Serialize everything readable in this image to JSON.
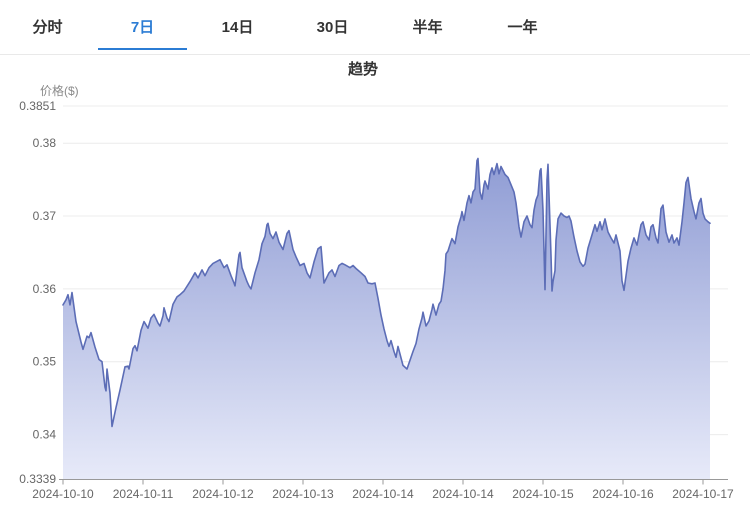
{
  "tabs": {
    "items": [
      {
        "label": "分时",
        "active": false
      },
      {
        "label": "7日",
        "active": true
      },
      {
        "label": "14日",
        "active": false
      },
      {
        "label": "30日",
        "active": false
      },
      {
        "label": "半年",
        "active": false
      },
      {
        "label": "一年",
        "active": false
      }
    ]
  },
  "header": {
    "title": "趋势"
  },
  "chart": {
    "y_axis_name": "价格($)",
    "y_ticks": [
      "0.3851",
      "0.38",
      "0.37",
      "0.36",
      "0.35",
      "0.34",
      "0.3339"
    ],
    "x_ticks": [
      "2024-10-10",
      "2024-10-11",
      "2024-10-12",
      "2024-10-13",
      "2024-10-14",
      "2024-10-14",
      "2024-10-15",
      "2024-10-16",
      "2024-10-17"
    ],
    "colors": {
      "line": "#5c6db6",
      "fill_top": "#8f9cd4",
      "fill_bottom": "#e7eaf9",
      "grid": "#ececec",
      "axis": "#999999",
      "tick_text": "#666666",
      "active_tab": "#2b7cd4",
      "tab_text": "#333333",
      "title_text": "#333333",
      "axis_name_text": "#8a8a8a"
    }
  },
  "chart_data": {
    "type": "area",
    "title": "趋势",
    "ylabel": "价格($)",
    "xlabel": "",
    "grid": true,
    "legend": null,
    "x_axis_labels": [
      "2024-10-10",
      "2024-10-11",
      "2024-10-12",
      "2024-10-13",
      "2024-10-14",
      "2024-10-14",
      "2024-10-15",
      "2024-10-16",
      "2024-10-17"
    ],
    "y_axis_ticks": [
      0.3851,
      0.38,
      0.37,
      0.36,
      0.35,
      0.34,
      0.3339
    ],
    "y_range": [
      0.3339,
      0.3851
    ],
    "x_unit": "tick index (0 = 2024-10-10, one unit per x tick)",
    "points": [
      [
        0,
        0.3578
      ],
      [
        0.038,
        0.3585
      ],
      [
        0.063,
        0.3592
      ],
      [
        0.088,
        0.3578
      ],
      [
        0.113,
        0.3595
      ],
      [
        0.163,
        0.3555
      ],
      [
        0.225,
        0.3527
      ],
      [
        0.25,
        0.3517
      ],
      [
        0.3,
        0.3535
      ],
      [
        0.325,
        0.3533
      ],
      [
        0.35,
        0.354
      ],
      [
        0.4,
        0.352
      ],
      [
        0.45,
        0.3503
      ],
      [
        0.488,
        0.35
      ],
      [
        0.525,
        0.3465
      ],
      [
        0.538,
        0.346
      ],
      [
        0.55,
        0.349
      ],
      [
        0.588,
        0.3457
      ],
      [
        0.613,
        0.3411
      ],
      [
        0.663,
        0.3437
      ],
      [
        0.713,
        0.3461
      ],
      [
        0.775,
        0.3493
      ],
      [
        0.813,
        0.3494
      ],
      [
        0.825,
        0.349
      ],
      [
        0.875,
        0.3518
      ],
      [
        0.9,
        0.3522
      ],
      [
        0.925,
        0.3515
      ],
      [
        0.975,
        0.3543
      ],
      [
        1.013,
        0.3555
      ],
      [
        1.063,
        0.3546
      ],
      [
        1.1,
        0.356
      ],
      [
        1.138,
        0.3565
      ],
      [
        1.188,
        0.3553
      ],
      [
        1.213,
        0.3549
      ],
      [
        1.25,
        0.3563
      ],
      [
        1.263,
        0.3574
      ],
      [
        1.3,
        0.356
      ],
      [
        1.325,
        0.3555
      ],
      [
        1.375,
        0.3579
      ],
      [
        1.425,
        0.3589
      ],
      [
        1.463,
        0.3592
      ],
      [
        1.513,
        0.3597
      ],
      [
        1.588,
        0.361
      ],
      [
        1.65,
        0.3622
      ],
      [
        1.688,
        0.3615
      ],
      [
        1.738,
        0.3626
      ],
      [
        1.775,
        0.3618
      ],
      [
        1.825,
        0.3629
      ],
      [
        1.875,
        0.3635
      ],
      [
        1.963,
        0.364
      ],
      [
        2.013,
        0.3629
      ],
      [
        2.05,
        0.3633
      ],
      [
        2.1,
        0.3618
      ],
      [
        2.138,
        0.3608
      ],
      [
        2.15,
        0.3604
      ],
      [
        2.2,
        0.3647
      ],
      [
        2.213,
        0.365
      ],
      [
        2.238,
        0.3629
      ],
      [
        2.3,
        0.361
      ],
      [
        2.325,
        0.3604
      ],
      [
        2.35,
        0.36
      ],
      [
        2.4,
        0.3622
      ],
      [
        2.45,
        0.364
      ],
      [
        2.488,
        0.3662
      ],
      [
        2.525,
        0.3672
      ],
      [
        2.55,
        0.3688
      ],
      [
        2.563,
        0.369
      ],
      [
        2.588,
        0.3676
      ],
      [
        2.625,
        0.3669
      ],
      [
        2.663,
        0.3678
      ],
      [
        2.7,
        0.3664
      ],
      [
        2.75,
        0.3654
      ],
      [
        2.8,
        0.3676
      ],
      [
        2.825,
        0.368
      ],
      [
        2.875,
        0.3654
      ],
      [
        2.913,
        0.3644
      ],
      [
        2.963,
        0.3632
      ],
      [
        3.013,
        0.3635
      ],
      [
        3.05,
        0.3622
      ],
      [
        3.088,
        0.3615
      ],
      [
        3.138,
        0.3637
      ],
      [
        3.188,
        0.3655
      ],
      [
        3.225,
        0.3658
      ],
      [
        3.263,
        0.3608
      ],
      [
        3.325,
        0.3622
      ],
      [
        3.363,
        0.3626
      ],
      [
        3.4,
        0.3617
      ],
      [
        3.45,
        0.3632
      ],
      [
        3.488,
        0.3635
      ],
      [
        3.525,
        0.3633
      ],
      [
        3.588,
        0.3629
      ],
      [
        3.625,
        0.3632
      ],
      [
        3.663,
        0.3628
      ],
      [
        3.725,
        0.3622
      ],
      [
        3.775,
        0.3617
      ],
      [
        3.813,
        0.3608
      ],
      [
        3.863,
        0.3607
      ],
      [
        3.9,
        0.3608
      ],
      [
        3.938,
        0.3587
      ],
      [
        3.975,
        0.3564
      ],
      [
        4.013,
        0.3545
      ],
      [
        4.05,
        0.3529
      ],
      [
        4.075,
        0.3521
      ],
      [
        4.1,
        0.3529
      ],
      [
        4.138,
        0.3514
      ],
      [
        4.163,
        0.3506
      ],
      [
        4.188,
        0.3521
      ],
      [
        4.25,
        0.3495
      ],
      [
        4.3,
        0.349
      ],
      [
        4.375,
        0.3514
      ],
      [
        4.413,
        0.3525
      ],
      [
        4.45,
        0.3545
      ],
      [
        4.488,
        0.356
      ],
      [
        4.5,
        0.3568
      ],
      [
        4.538,
        0.3549
      ],
      [
        4.575,
        0.3556
      ],
      [
        4.613,
        0.3572
      ],
      [
        4.625,
        0.3579
      ],
      [
        4.663,
        0.3564
      ],
      [
        4.7,
        0.3579
      ],
      [
        4.725,
        0.3583
      ],
      [
        4.75,
        0.36
      ],
      [
        4.775,
        0.3625
      ],
      [
        4.788,
        0.3648
      ],
      [
        4.813,
        0.3652
      ],
      [
        4.85,
        0.3665
      ],
      [
        4.863,
        0.3669
      ],
      [
        4.9,
        0.3662
      ],
      [
        4.938,
        0.3685
      ],
      [
        4.975,
        0.3699
      ],
      [
        4.988,
        0.3706
      ],
      [
        5.013,
        0.3694
      ],
      [
        5.05,
        0.3718
      ],
      [
        5.075,
        0.3728
      ],
      [
        5.1,
        0.3718
      ],
      [
        5.125,
        0.3733
      ],
      [
        5.15,
        0.3737
      ],
      [
        5.175,
        0.3776
      ],
      [
        5.188,
        0.3779
      ],
      [
        5.213,
        0.3733
      ],
      [
        5.238,
        0.3723
      ],
      [
        5.263,
        0.3743
      ],
      [
        5.275,
        0.3748
      ],
      [
        5.313,
        0.3737
      ],
      [
        5.338,
        0.3757
      ],
      [
        5.363,
        0.3766
      ],
      [
        5.388,
        0.3757
      ],
      [
        5.425,
        0.3772
      ],
      [
        5.45,
        0.3758
      ],
      [
        5.475,
        0.3768
      ],
      [
        5.525,
        0.3757
      ],
      [
        5.563,
        0.3753
      ],
      [
        5.6,
        0.3743
      ],
      [
        5.638,
        0.3733
      ],
      [
        5.663,
        0.3718
      ],
      [
        5.7,
        0.3685
      ],
      [
        5.725,
        0.3671
      ],
      [
        5.763,
        0.3692
      ],
      [
        5.8,
        0.37
      ],
      [
        5.838,
        0.3688
      ],
      [
        5.863,
        0.3684
      ],
      [
        5.888,
        0.3708
      ],
      [
        5.913,
        0.3722
      ],
      [
        5.938,
        0.3729
      ],
      [
        5.963,
        0.3762
      ],
      [
        5.975,
        0.3765
      ],
      [
        6,
        0.3708
      ],
      [
        6.025,
        0.3599
      ],
      [
        6.05,
        0.375
      ],
      [
        6.063,
        0.3771
      ],
      [
        6.088,
        0.3688
      ],
      [
        6.1,
        0.3646
      ],
      [
        6.113,
        0.3597
      ],
      [
        6.125,
        0.361
      ],
      [
        6.15,
        0.3625
      ],
      [
        6.163,
        0.3667
      ],
      [
        6.188,
        0.3696
      ],
      [
        6.225,
        0.3704
      ],
      [
        6.263,
        0.37
      ],
      [
        6.3,
        0.3698
      ],
      [
        6.325,
        0.37
      ],
      [
        6.35,
        0.3693
      ],
      [
        6.388,
        0.3671
      ],
      [
        6.425,
        0.3652
      ],
      [
        6.463,
        0.3637
      ],
      [
        6.5,
        0.3631
      ],
      [
        6.525,
        0.3634
      ],
      [
        6.563,
        0.3656
      ],
      [
        6.613,
        0.3674
      ],
      [
        6.65,
        0.3688
      ],
      [
        6.675,
        0.3679
      ],
      [
        6.713,
        0.3692
      ],
      [
        6.738,
        0.3681
      ],
      [
        6.775,
        0.3696
      ],
      [
        6.813,
        0.3678
      ],
      [
        6.85,
        0.367
      ],
      [
        6.888,
        0.3663
      ],
      [
        6.913,
        0.3674
      ],
      [
        6.963,
        0.3652
      ],
      [
        6.988,
        0.3611
      ],
      [
        7.013,
        0.3598
      ],
      [
        7.063,
        0.3638
      ],
      [
        7.1,
        0.3656
      ],
      [
        7.138,
        0.367
      ],
      [
        7.175,
        0.366
      ],
      [
        7.225,
        0.3688
      ],
      [
        7.25,
        0.3692
      ],
      [
        7.288,
        0.3674
      ],
      [
        7.325,
        0.3667
      ],
      [
        7.35,
        0.3685
      ],
      [
        7.375,
        0.3688
      ],
      [
        7.413,
        0.367
      ],
      [
        7.438,
        0.3663
      ],
      [
        7.475,
        0.371
      ],
      [
        7.5,
        0.3715
      ],
      [
        7.538,
        0.3678
      ],
      [
        7.575,
        0.3664
      ],
      [
        7.613,
        0.3674
      ],
      [
        7.638,
        0.3663
      ],
      [
        7.675,
        0.367
      ],
      [
        7.7,
        0.366
      ],
      [
        7.738,
        0.3692
      ],
      [
        7.763,
        0.3718
      ],
      [
        7.788,
        0.3746
      ],
      [
        7.813,
        0.3753
      ],
      [
        7.85,
        0.3724
      ],
      [
        7.888,
        0.3706
      ],
      [
        7.913,
        0.3696
      ],
      [
        7.95,
        0.3718
      ],
      [
        7.975,
        0.3724
      ],
      [
        8,
        0.3704
      ],
      [
        8.025,
        0.3696
      ],
      [
        8.063,
        0.3692
      ],
      [
        8.088,
        0.369
      ]
    ]
  }
}
